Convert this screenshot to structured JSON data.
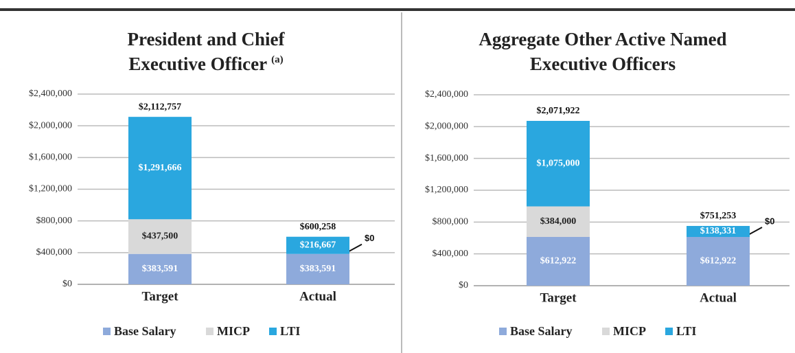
{
  "chart_data": [
    {
      "type": "stacked-bar",
      "title": [
        "President and Chief",
        "Executive Officer"
      ],
      "title_footnote": "(a)",
      "categories": [
        "Target",
        "Actual"
      ],
      "series": [
        {
          "name": "Base Salary",
          "color": "#8eaadb",
          "values": [
            383591,
            383591
          ],
          "value_labels": [
            "$383,591",
            "$383,591"
          ]
        },
        {
          "name": "MICP",
          "color": "#d9d9d9",
          "values": [
            437500,
            0
          ],
          "value_labels": [
            "$437,500",
            "$0"
          ]
        },
        {
          "name": "LTI",
          "color": "#2aa7df",
          "values": [
            1291666,
            216667
          ],
          "value_labels": [
            "$1,291,666",
            "$216,667"
          ]
        }
      ],
      "totals": [
        2112757,
        600258
      ],
      "total_labels": [
        "$2,112,757",
        "$600,258"
      ],
      "ylim": [
        0,
        2400000
      ],
      "yticks": [
        {
          "value": 0,
          "label": "$0"
        },
        {
          "value": 400000,
          "label": "$400,000"
        },
        {
          "value": 800000,
          "label": "$800,000"
        },
        {
          "value": 1200000,
          "label": "$1,200,000"
        },
        {
          "value": 1600000,
          "label": "$1,600,000"
        },
        {
          "value": 2000000,
          "label": "$2,000,000"
        },
        {
          "value": 2400000,
          "label": "$2,400,000"
        }
      ],
      "grid": true,
      "legend": "bottom"
    },
    {
      "type": "stacked-bar",
      "title": [
        "Aggregate Other Active Named",
        "Executive Officers"
      ],
      "categories": [
        "Target",
        "Actual"
      ],
      "series": [
        {
          "name": "Base Salary",
          "color": "#8eaadb",
          "values": [
            612922,
            612922
          ],
          "value_labels": [
            "$612,922",
            "$612,922"
          ]
        },
        {
          "name": "MICP",
          "color": "#d9d9d9",
          "values": [
            384000,
            0
          ],
          "value_labels": [
            "$384,000",
            "$0"
          ]
        },
        {
          "name": "LTI",
          "color": "#2aa7df",
          "values": [
            1075000,
            138331
          ],
          "value_labels": [
            "$1,075,000",
            "$138,331"
          ]
        }
      ],
      "totals": [
        2071922,
        751253
      ],
      "total_labels": [
        "$2,071,922",
        "$751,253"
      ],
      "ylim": [
        0,
        2400000
      ],
      "yticks": [
        {
          "value": 0,
          "label": "$0"
        },
        {
          "value": 400000,
          "label": "$400,000"
        },
        {
          "value": 800000,
          "label": "$800,000"
        },
        {
          "value": 1200000,
          "label": "$1,200,000"
        },
        {
          "value": 1600000,
          "label": "$1,600,000"
        },
        {
          "value": 2000000,
          "label": "$2,000,000"
        },
        {
          "value": 2400000,
          "label": "$2,400,000"
        }
      ],
      "grid": true,
      "legend": "bottom"
    }
  ]
}
